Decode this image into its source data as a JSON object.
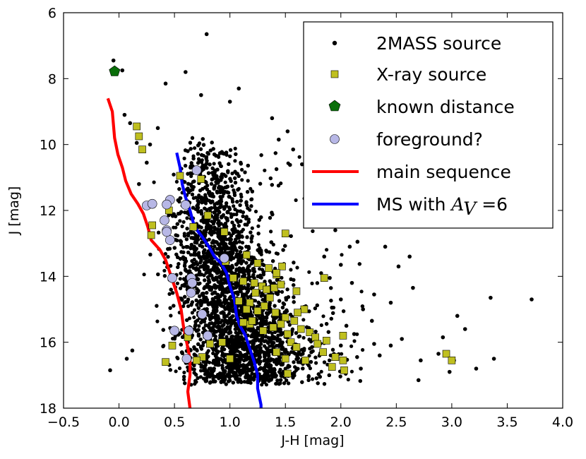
{
  "chart_data": {
    "type": "scatter",
    "title": "",
    "xlabel": "J-H [mag]",
    "ylabel": "J [mag]",
    "xlim": [
      -0.5,
      4.0
    ],
    "ylim": [
      18,
      6
    ],
    "y_inverted": true,
    "grid": false,
    "legend_position": "top-right",
    "x_ticks": [
      "−0.5",
      "0.0",
      "0.5",
      "1.0",
      "1.5",
      "2.0",
      "2.5",
      "3.0",
      "3.5",
      "4.0"
    ],
    "x_tick_values": [
      -0.5,
      0.0,
      0.5,
      1.0,
      1.5,
      2.0,
      2.5,
      3.0,
      3.5,
      4.0
    ],
    "y_ticks": [
      "6",
      "8",
      "10",
      "12",
      "14",
      "16",
      "18"
    ],
    "y_tick_values": [
      6,
      8,
      10,
      12,
      14,
      16,
      18
    ],
    "legend": [
      {
        "label": "2MASS source",
        "marker": "dot"
      },
      {
        "label": "X-ray source",
        "marker": "square"
      },
      {
        "label": "known distance",
        "marker": "pentagon"
      },
      {
        "label": "foreground?",
        "marker": "circle"
      },
      {
        "label": "main sequence",
        "marker": "line-red"
      },
      {
        "label_prefix": "MS with ",
        "label_math": "A",
        "label_math_sub": "V",
        "label_suffix": " =6",
        "marker": "line-blue"
      }
    ],
    "series": [
      {
        "name": "2MASS source",
        "color": "#000000",
        "cloud_description": "dense cluster of several thousand faint sources",
        "points": [
          [
            0.79,
            6.65
          ],
          [
            -0.05,
            7.45
          ],
          [
            0.03,
            7.75
          ],
          [
            0.6,
            7.8
          ],
          [
            0.42,
            8.15
          ],
          [
            1.08,
            8.3
          ],
          [
            0.74,
            8.5
          ],
          [
            0.05,
            9.1
          ],
          [
            0.1,
            9.35
          ],
          [
            0.35,
            9.5
          ],
          [
            1.38,
            9.2
          ],
          [
            1.44,
            9.85
          ],
          [
            0.86,
            10.3
          ],
          [
            0.25,
            10.55
          ],
          [
            0.62,
            10.2
          ],
          [
            2.08,
            11.6
          ],
          [
            2.22,
            11.8
          ],
          [
            1.75,
            12.05
          ],
          [
            2.95,
            12.45
          ],
          [
            1.95,
            12.6
          ],
          [
            2.95,
            12.0
          ],
          [
            2.08,
            13.1
          ],
          [
            2.62,
            13.4
          ],
          [
            2.0,
            13.65
          ],
          [
            2.52,
            13.7
          ],
          [
            1.48,
            13.2
          ],
          [
            1.9,
            14.05
          ],
          [
            2.1,
            14.2
          ],
          [
            2.65,
            14.35
          ],
          [
            2.3,
            14.55
          ],
          [
            2.0,
            14.7
          ],
          [
            2.45,
            14.8
          ],
          [
            3.35,
            14.65
          ],
          [
            3.72,
            14.7
          ],
          [
            1.92,
            14.95
          ],
          [
            2.2,
            15.0
          ],
          [
            2.28,
            15.35
          ],
          [
            2.05,
            15.5
          ],
          [
            2.12,
            15.75
          ],
          [
            2.55,
            15.9
          ],
          [
            2.92,
            15.85
          ],
          [
            3.05,
            15.2
          ],
          [
            2.45,
            16.1
          ],
          [
            2.88,
            16.35
          ],
          [
            3.02,
            16.55
          ],
          [
            2.0,
            16.1
          ],
          [
            2.18,
            16.8
          ],
          [
            2.35,
            16.4
          ],
          [
            2.72,
            16.55
          ],
          [
            2.7,
            17.15
          ],
          [
            3.22,
            16.8
          ],
          [
            3.38,
            16.5
          ],
          [
            2.98,
            16.9
          ],
          [
            2.3,
            16.05
          ],
          [
            3.12,
            15.6
          ],
          [
            -0.08,
            16.85
          ],
          [
            0.07,
            16.5
          ],
          [
            0.12,
            16.25
          ],
          [
            1.52,
            9.6
          ],
          [
            1.65,
            10.6
          ],
          [
            0.18,
            11.2
          ],
          [
            0.28,
            10.0
          ],
          [
            1.0,
            8.7
          ],
          [
            0.16,
            9.95
          ],
          [
            1.57,
            10.15
          ],
          [
            1.72,
            10.9
          ],
          [
            2.15,
            12.95
          ],
          [
            2.4,
            13.1
          ],
          [
            1.85,
            13.4
          ]
        ]
      },
      {
        "name": "X-ray source",
        "color": "#bfbf1f",
        "points": [
          [
            0.16,
            9.45
          ],
          [
            0.18,
            9.75
          ],
          [
            0.21,
            10.15
          ],
          [
            0.55,
            10.95
          ],
          [
            0.74,
            11.05
          ],
          [
            0.8,
            12.15
          ],
          [
            0.67,
            12.5
          ],
          [
            0.3,
            12.45
          ],
          [
            0.29,
            12.75
          ],
          [
            0.45,
            12.0
          ],
          [
            0.95,
            12.65
          ],
          [
            0.96,
            13.55
          ],
          [
            1.15,
            13.35
          ],
          [
            1.25,
            13.6
          ],
          [
            1.35,
            13.75
          ],
          [
            1.42,
            13.95
          ],
          [
            1.5,
            12.7
          ],
          [
            1.47,
            13.7
          ],
          [
            1.03,
            14.05
          ],
          [
            1.12,
            14.15
          ],
          [
            1.22,
            14.2
          ],
          [
            1.29,
            14.3
          ],
          [
            1.33,
            14.4
          ],
          [
            1.4,
            14.35
          ],
          [
            1.46,
            14.25
          ],
          [
            1.36,
            14.65
          ],
          [
            1.23,
            14.5
          ],
          [
            1.08,
            14.75
          ],
          [
            1.18,
            14.8
          ],
          [
            1.31,
            14.9
          ],
          [
            1.25,
            15.05
          ],
          [
            1.41,
            15.1
          ],
          [
            1.15,
            15.0
          ],
          [
            1.6,
            14.45
          ],
          [
            1.67,
            15.0
          ],
          [
            1.61,
            15.1
          ],
          [
            1.58,
            15.35
          ],
          [
            1.5,
            15.25
          ],
          [
            1.46,
            15.45
          ],
          [
            1.39,
            15.55
          ],
          [
            1.3,
            15.65
          ],
          [
            1.52,
            15.75
          ],
          [
            1.64,
            15.6
          ],
          [
            1.72,
            15.7
          ],
          [
            1.77,
            15.85
          ],
          [
            1.55,
            16.0
          ],
          [
            1.6,
            16.15
          ],
          [
            1.79,
            16.05
          ],
          [
            1.84,
            16.3
          ],
          [
            1.5,
            16.5
          ],
          [
            1.42,
            16.3
          ],
          [
            1.68,
            16.55
          ],
          [
            1.52,
            16.95
          ],
          [
            1.95,
            16.45
          ],
          [
            2.02,
            16.55
          ],
          [
            1.92,
            16.75
          ],
          [
            2.03,
            16.85
          ],
          [
            2.02,
            15.8
          ],
          [
            1.87,
            15.95
          ],
          [
            1.85,
            14.05
          ],
          [
            1.18,
            15.45
          ],
          [
            1.12,
            15.4
          ],
          [
            1.2,
            15.35
          ],
          [
            0.93,
            16.0
          ],
          [
            0.75,
            16.45
          ],
          [
            0.7,
            16.55
          ],
          [
            0.82,
            16.05
          ],
          [
            1.0,
            16.5
          ],
          [
            0.48,
            16.1
          ],
          [
            0.42,
            16.6
          ],
          [
            0.62,
            15.85
          ],
          [
            1.42,
            13.9
          ],
          [
            2.95,
            16.35
          ],
          [
            3.0,
            16.55
          ]
        ]
      },
      {
        "name": "known distance",
        "color": "#0a6e0a",
        "points": [
          [
            -0.04,
            7.78
          ]
        ]
      },
      {
        "name": "foreground?",
        "color": "#b7b7e6",
        "points": [
          [
            0.7,
            10.78
          ],
          [
            0.25,
            11.85
          ],
          [
            0.3,
            11.8
          ],
          [
            0.46,
            11.68
          ],
          [
            0.6,
            11.83
          ],
          [
            0.43,
            11.82
          ],
          [
            0.41,
            12.3
          ],
          [
            0.43,
            12.6
          ],
          [
            0.46,
            12.9
          ],
          [
            0.43,
            12.65
          ],
          [
            0.95,
            13.45
          ],
          [
            0.48,
            14.05
          ],
          [
            0.65,
            14.05
          ],
          [
            0.66,
            14.2
          ],
          [
            0.65,
            14.5
          ],
          [
            0.75,
            15.15
          ],
          [
            0.5,
            15.65
          ],
          [
            0.63,
            15.65
          ],
          [
            0.8,
            15.8
          ],
          [
            0.61,
            16.5
          ]
        ]
      }
    ],
    "lines": [
      {
        "name": "main sequence",
        "color": "#ff0000",
        "points": [
          [
            -0.1,
            8.6
          ],
          [
            -0.06,
            9.0
          ],
          [
            -0.05,
            9.4
          ],
          [
            -0.04,
            9.8
          ],
          [
            -0.01,
            10.3
          ],
          [
            0.03,
            10.7
          ],
          [
            0.06,
            11.1
          ],
          [
            0.11,
            11.5
          ],
          [
            0.17,
            11.8
          ],
          [
            0.22,
            12.1
          ],
          [
            0.26,
            12.5
          ],
          [
            0.29,
            12.9
          ],
          [
            0.37,
            13.2
          ],
          [
            0.42,
            13.5
          ],
          [
            0.47,
            14.0
          ],
          [
            0.52,
            14.5
          ],
          [
            0.56,
            15.0
          ],
          [
            0.58,
            15.5
          ],
          [
            0.61,
            16.0
          ],
          [
            0.64,
            16.5
          ],
          [
            0.64,
            17.0
          ],
          [
            0.62,
            17.5
          ],
          [
            0.64,
            18.0
          ]
        ]
      },
      {
        "name": "MS with A_V=6",
        "color": "#0000ff",
        "points": [
          [
            0.52,
            10.25
          ],
          [
            0.55,
            10.7
          ],
          [
            0.57,
            11.2
          ],
          [
            0.6,
            11.6
          ],
          [
            0.64,
            12.0
          ],
          [
            0.68,
            12.5
          ],
          [
            0.75,
            12.8
          ],
          [
            0.81,
            13.1
          ],
          [
            0.86,
            13.4
          ],
          [
            0.92,
            13.6
          ],
          [
            0.97,
            13.9
          ],
          [
            1.0,
            14.3
          ],
          [
            1.04,
            14.7
          ],
          [
            1.06,
            15.2
          ],
          [
            1.09,
            15.5
          ],
          [
            1.14,
            15.8
          ],
          [
            1.18,
            16.2
          ],
          [
            1.22,
            16.6
          ],
          [
            1.25,
            17.0
          ],
          [
            1.25,
            17.4
          ],
          [
            1.28,
            17.9
          ],
          [
            1.28,
            18.0
          ]
        ]
      }
    ]
  }
}
